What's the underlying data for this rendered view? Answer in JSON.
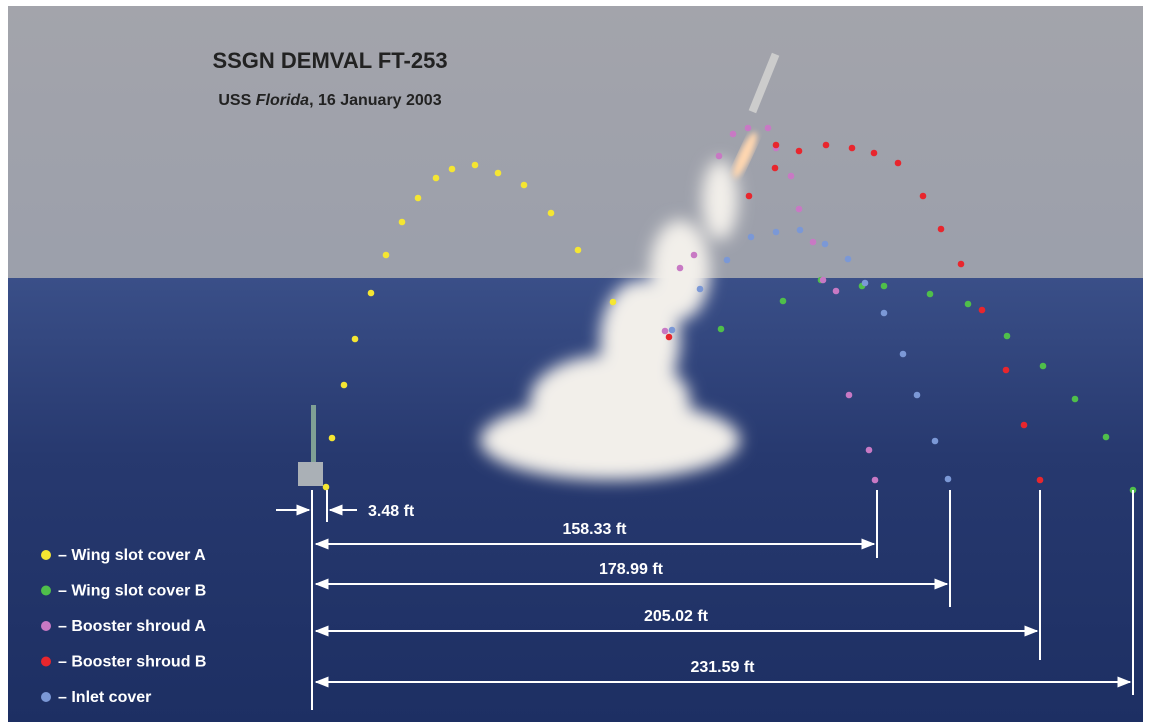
{
  "title": "SSGN DEMVAL FT-253",
  "subtitle": {
    "parts": [
      "USS ",
      "Florida",
      ", 16 January 2003"
    ]
  },
  "measurements": [
    "3.48 ft",
    "158.33 ft",
    "178.99 ft",
    "205.02 ft",
    "231.59 ft"
  ],
  "legend": [
    {
      "label": "– Wing slot cover A",
      "color": "#f5e632"
    },
    {
      "label": "– Wing slot cover B",
      "color": "#4fbf4a"
    },
    {
      "label": "– Booster shroud A",
      "color": "#c879c4"
    },
    {
      "label": "– Booster shroud B",
      "color": "#e8262d"
    },
    {
      "label": "– Inlet cover",
      "color": "#7b98d6"
    }
  ]
}
